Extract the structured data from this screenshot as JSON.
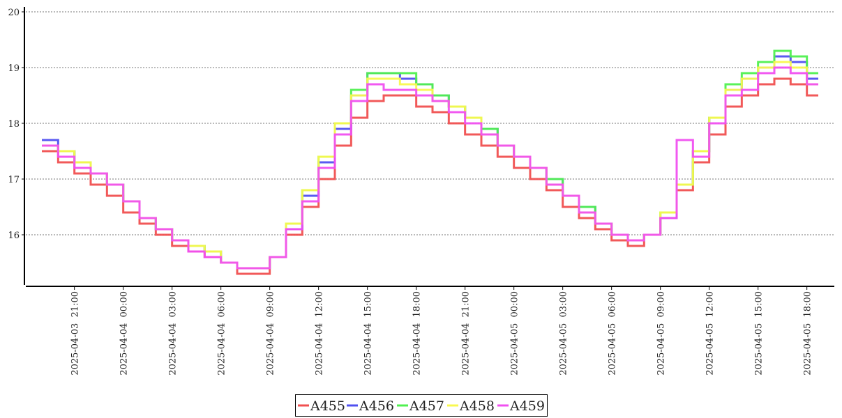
{
  "chart_data": {
    "type": "line",
    "step": true,
    "title": "",
    "xlabel": "",
    "ylabel": "",
    "x_unit": "hours since 2025-04-03 19:00",
    "x": [
      0,
      1,
      2,
      3,
      4,
      5,
      6,
      7,
      8,
      9,
      10,
      11,
      12,
      13,
      14,
      15,
      16,
      17,
      18,
      19,
      20,
      21,
      22,
      23,
      24,
      25,
      26,
      27,
      28,
      29,
      30,
      31,
      32,
      33,
      34,
      35,
      36,
      37,
      38,
      39,
      40,
      41,
      42,
      43,
      44,
      45,
      46,
      47
    ],
    "x_end": 47.7,
    "xticks": [
      {
        "t": 2,
        "label": "2025-04-03  21:00"
      },
      {
        "t": 5,
        "label": "2025-04-04  00:00"
      },
      {
        "t": 8,
        "label": "2025-04-04  03:00"
      },
      {
        "t": 11,
        "label": "2025-04-04  06:00"
      },
      {
        "t": 14,
        "label": "2025-04-04  09:00"
      },
      {
        "t": 17,
        "label": "2025-04-04  12:00"
      },
      {
        "t": 20,
        "label": "2025-04-04  15:00"
      },
      {
        "t": 23,
        "label": "2025-04-04  18:00"
      },
      {
        "t": 26,
        "label": "2025-04-04  21:00"
      },
      {
        "t": 29,
        "label": "2025-04-05  00:00"
      },
      {
        "t": 32,
        "label": "2025-04-05  03:00"
      },
      {
        "t": 35,
        "label": "2025-04-05  06:00"
      },
      {
        "t": 38,
        "label": "2025-04-05  09:00"
      },
      {
        "t": 41,
        "label": "2025-04-05  12:00"
      },
      {
        "t": 44,
        "label": "2025-04-05  15:00"
      },
      {
        "t": 47,
        "label": "2025-04-05  18:00"
      }
    ],
    "yticks": [
      "16",
      "17",
      "18",
      "19",
      "20"
    ],
    "ylim": [
      15.1,
      20
    ],
    "grid": true,
    "legend_position": "bottom-center",
    "series": [
      {
        "name": "A455",
        "color": "#f05050",
        "values": [
          17.5,
          17.3,
          17.1,
          16.9,
          16.7,
          16.4,
          16.2,
          16.0,
          15.8,
          15.7,
          15.6,
          15.5,
          15.3,
          15.3,
          15.6,
          16.0,
          16.5,
          17.0,
          17.6,
          18.1,
          18.4,
          18.5,
          18.5,
          18.3,
          18.2,
          18.0,
          17.8,
          17.6,
          17.4,
          17.2,
          17.0,
          16.8,
          16.5,
          16.3,
          16.1,
          15.9,
          15.8,
          16.0,
          16.3,
          16.8,
          17.3,
          17.8,
          18.3,
          18.5,
          18.7,
          18.8,
          18.7,
          18.5
        ]
      },
      {
        "name": "A456",
        "color": "#5050f0",
        "values": [
          17.7,
          17.5,
          17.3,
          17.1,
          16.9,
          16.6,
          16.3,
          16.1,
          15.9,
          15.8,
          15.7,
          15.5,
          15.4,
          15.4,
          15.6,
          16.1,
          16.7,
          17.3,
          17.9,
          18.5,
          18.9,
          18.9,
          18.8,
          18.7,
          18.5,
          18.3,
          18.1,
          17.9,
          17.6,
          17.4,
          17.2,
          17.0,
          16.7,
          16.5,
          16.2,
          16.0,
          15.9,
          16.0,
          16.3,
          16.9,
          17.5,
          18.1,
          18.6,
          18.8,
          19.0,
          19.2,
          19.1,
          18.8
        ]
      },
      {
        "name": "A457",
        "color": "#50f050",
        "values": [
          17.6,
          17.5,
          17.3,
          17.1,
          16.9,
          16.6,
          16.3,
          16.1,
          15.9,
          15.8,
          15.7,
          15.5,
          15.4,
          15.4,
          15.6,
          16.2,
          16.8,
          17.4,
          18.0,
          18.6,
          18.9,
          18.9,
          18.9,
          18.7,
          18.5,
          18.3,
          18.1,
          17.9,
          17.6,
          17.4,
          17.2,
          17.0,
          16.7,
          16.5,
          16.2,
          16.0,
          15.9,
          16.0,
          16.4,
          16.9,
          17.5,
          18.1,
          18.7,
          18.9,
          19.1,
          19.3,
          19.2,
          18.9
        ]
      },
      {
        "name": "A458",
        "color": "#f8f850",
        "values": [
          17.6,
          17.5,
          17.3,
          17.1,
          16.9,
          16.6,
          16.3,
          16.1,
          15.9,
          15.8,
          15.7,
          15.5,
          15.4,
          15.4,
          15.6,
          16.2,
          16.8,
          17.4,
          18.0,
          18.5,
          18.8,
          18.8,
          18.7,
          18.6,
          18.4,
          18.3,
          18.1,
          17.8,
          17.6,
          17.4,
          17.2,
          16.9,
          16.7,
          16.4,
          16.2,
          16.0,
          15.9,
          16.0,
          16.4,
          16.9,
          17.5,
          18.1,
          18.6,
          18.8,
          19.0,
          19.1,
          19.0,
          18.7
        ]
      },
      {
        "name": "A459",
        "color": "#f050f0",
        "values": [
          17.6,
          17.4,
          17.2,
          17.1,
          16.9,
          16.6,
          16.3,
          16.1,
          15.9,
          15.7,
          15.6,
          15.5,
          15.4,
          15.4,
          15.6,
          16.1,
          16.6,
          17.2,
          17.8,
          18.4,
          18.7,
          18.6,
          18.6,
          18.5,
          18.4,
          18.2,
          18.0,
          17.8,
          17.6,
          17.4,
          17.2,
          16.9,
          16.7,
          16.4,
          16.2,
          16.0,
          15.9,
          16.0,
          16.3,
          17.7,
          17.4,
          18.0,
          18.5,
          18.6,
          18.9,
          19.0,
          18.9,
          18.7
        ]
      }
    ]
  }
}
